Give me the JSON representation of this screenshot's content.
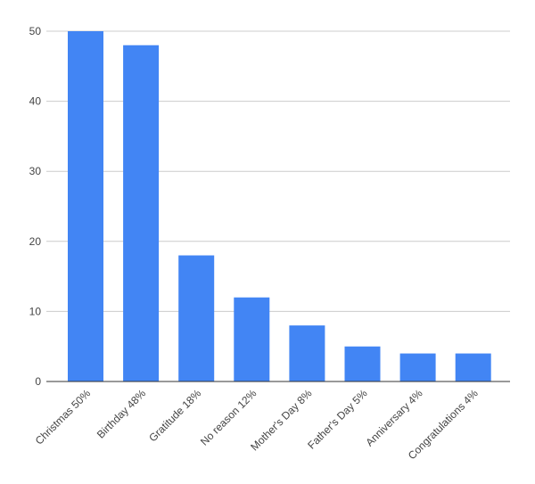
{
  "chart_data": {
    "type": "bar",
    "title": "",
    "xlabel": "",
    "ylabel": "",
    "categories": [
      "Christmas 50%",
      "Birthday 48%",
      "Gratitude 18%",
      "No reason 12%",
      "Mother's Day 8%",
      "Father's Day 5%",
      "Anniversary 4%",
      "Congratulations 4%"
    ],
    "values": [
      50,
      48,
      18,
      12,
      8,
      5,
      4,
      4
    ],
    "ylim": [
      0,
      50
    ],
    "yticks": [
      "0",
      "10",
      "20",
      "30",
      "40",
      "50"
    ],
    "grid": true,
    "legend": "none",
    "bar_color": "#4285f4",
    "grid_color": "#cccccc",
    "axis_color": "#333333",
    "text_color": "#444444"
  }
}
